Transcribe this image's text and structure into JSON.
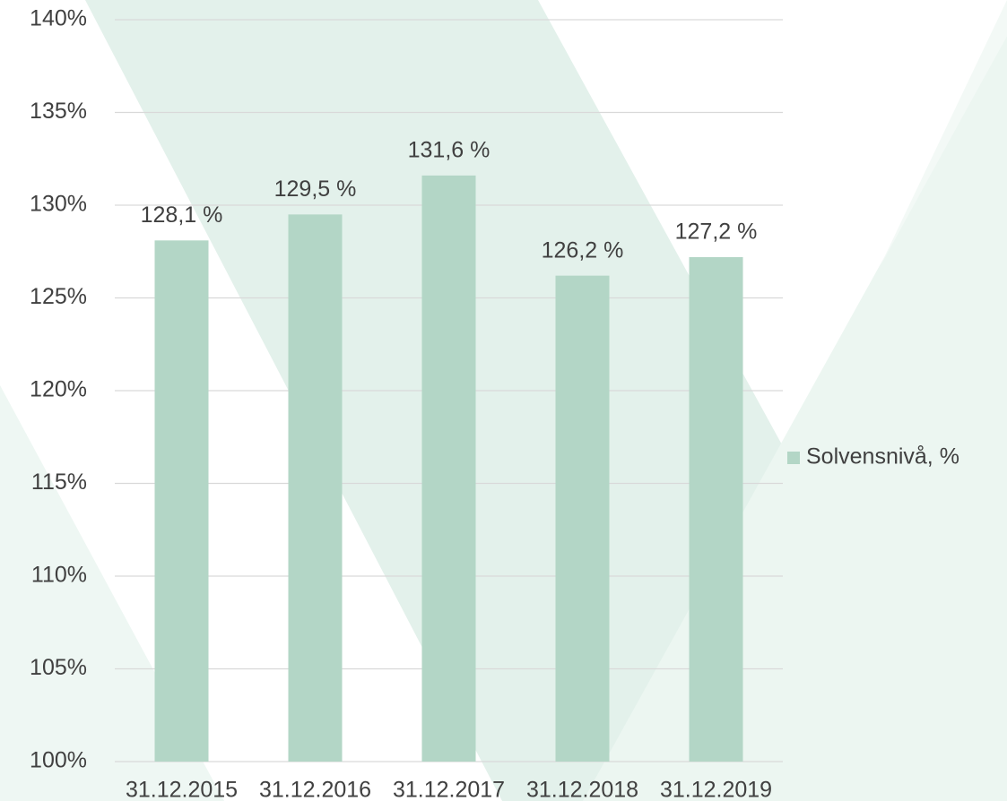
{
  "chart_data": {
    "type": "bar",
    "categories": [
      "31.12.2015",
      "31.12.2016",
      "31.12.2017",
      "31.12.2018",
      "31.12.2019"
    ],
    "series": [
      {
        "name": "Solvensnivå, %",
        "color": "#b3d6c6",
        "values": [
          128.1,
          129.5,
          131.6,
          126.2,
          127.2
        ],
        "value_labels": [
          "128,1 %",
          "129,5 %",
          "131,6 %",
          "126,2 %",
          "127,2 %"
        ]
      }
    ],
    "ylim": [
      100,
      140
    ],
    "yticks": [
      {
        "value": 100,
        "label": "100%"
      },
      {
        "value": 105,
        "label": "105%"
      },
      {
        "value": 110,
        "label": "110%"
      },
      {
        "value": 115,
        "label": "115%"
      },
      {
        "value": 120,
        "label": "120%"
      },
      {
        "value": 125,
        "label": "125%"
      },
      {
        "value": 130,
        "label": "130%"
      },
      {
        "value": 135,
        "label": "135%"
      },
      {
        "value": 140,
        "label": "140%"
      }
    ],
    "grid": true,
    "legend": "right"
  }
}
